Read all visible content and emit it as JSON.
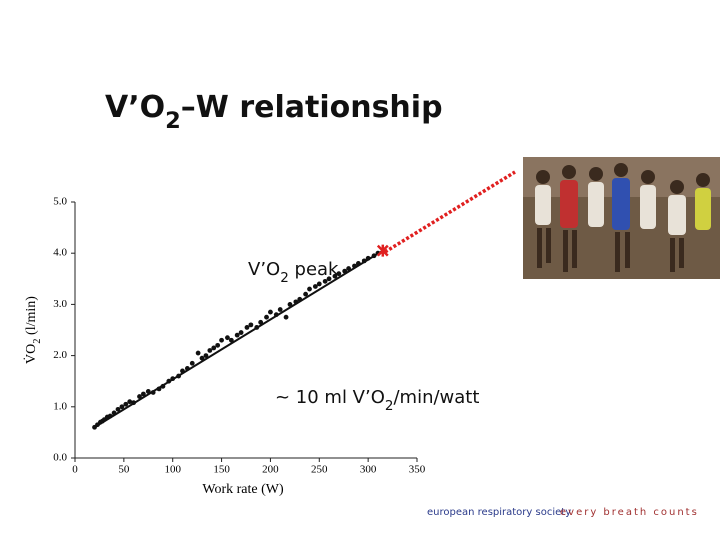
{
  "slide": {
    "title": "V’O2–W relationship",
    "footer_org": "european respiratory society",
    "footer_motto": "every breath counts"
  },
  "chart_data": {
    "type": "scatter",
    "x_label": "Work rate (W)",
    "y_label": "V̇O2 (l/min)",
    "xlim": [
      0,
      350
    ],
    "ylim": [
      0,
      5
    ],
    "xticks": [
      0,
      50,
      100,
      150,
      200,
      250,
      300,
      350
    ],
    "yticks": [
      {
        "value": 0,
        "label": "0.0"
      },
      {
        "value": 1,
        "label": "1.0"
      },
      {
        "value": 2,
        "label": "2.0"
      },
      {
        "value": 3,
        "label": "3.0"
      },
      {
        "value": 4,
        "label": "4.0"
      },
      {
        "value": 5,
        "label": "5.0"
      }
    ],
    "color": "#111111",
    "x": [
      20,
      23,
      26,
      28,
      30,
      33,
      36,
      40,
      44,
      48,
      52,
      56,
      60,
      66,
      70,
      75,
      80,
      86,
      90,
      96,
      100,
      106,
      110,
      115,
      120,
      126,
      130,
      134,
      138,
      142,
      146,
      150,
      156,
      160,
      166,
      170,
      176,
      180,
      186,
      190,
      196,
      200,
      206,
      210,
      216,
      220,
      226,
      230,
      236,
      240,
      246,
      250,
      256,
      260,
      266,
      270,
      276,
      280,
      286,
      290,
      296,
      300,
      306,
      310
    ],
    "values": [
      0.6,
      0.65,
      0.7,
      0.72,
      0.75,
      0.8,
      0.82,
      0.88,
      0.95,
      1.0,
      1.05,
      1.1,
      1.08,
      1.2,
      1.25,
      1.3,
      1.28,
      1.35,
      1.4,
      1.5,
      1.55,
      1.6,
      1.7,
      1.75,
      1.85,
      2.05,
      1.95,
      2.0,
      2.1,
      2.15,
      2.2,
      2.3,
      2.35,
      2.3,
      2.4,
      2.45,
      2.55,
      2.6,
      2.55,
      2.65,
      2.75,
      2.85,
      2.8,
      2.9,
      2.75,
      3.0,
      3.05,
      3.1,
      3.2,
      3.3,
      3.35,
      3.4,
      3.45,
      3.5,
      3.55,
      3.6,
      3.65,
      3.7,
      3.75,
      3.8,
      3.85,
      3.9,
      3.95,
      4.0
    ],
    "fit": {
      "x": [
        20,
        315
      ],
      "values": [
        0.6,
        4.05
      ]
    },
    "peak": {
      "x": 315,
      "value": 4.05,
      "color": "#e02020"
    },
    "annotations": [
      "V’O2 peak",
      "~ 10 ml V’O2/min/watt"
    ]
  }
}
